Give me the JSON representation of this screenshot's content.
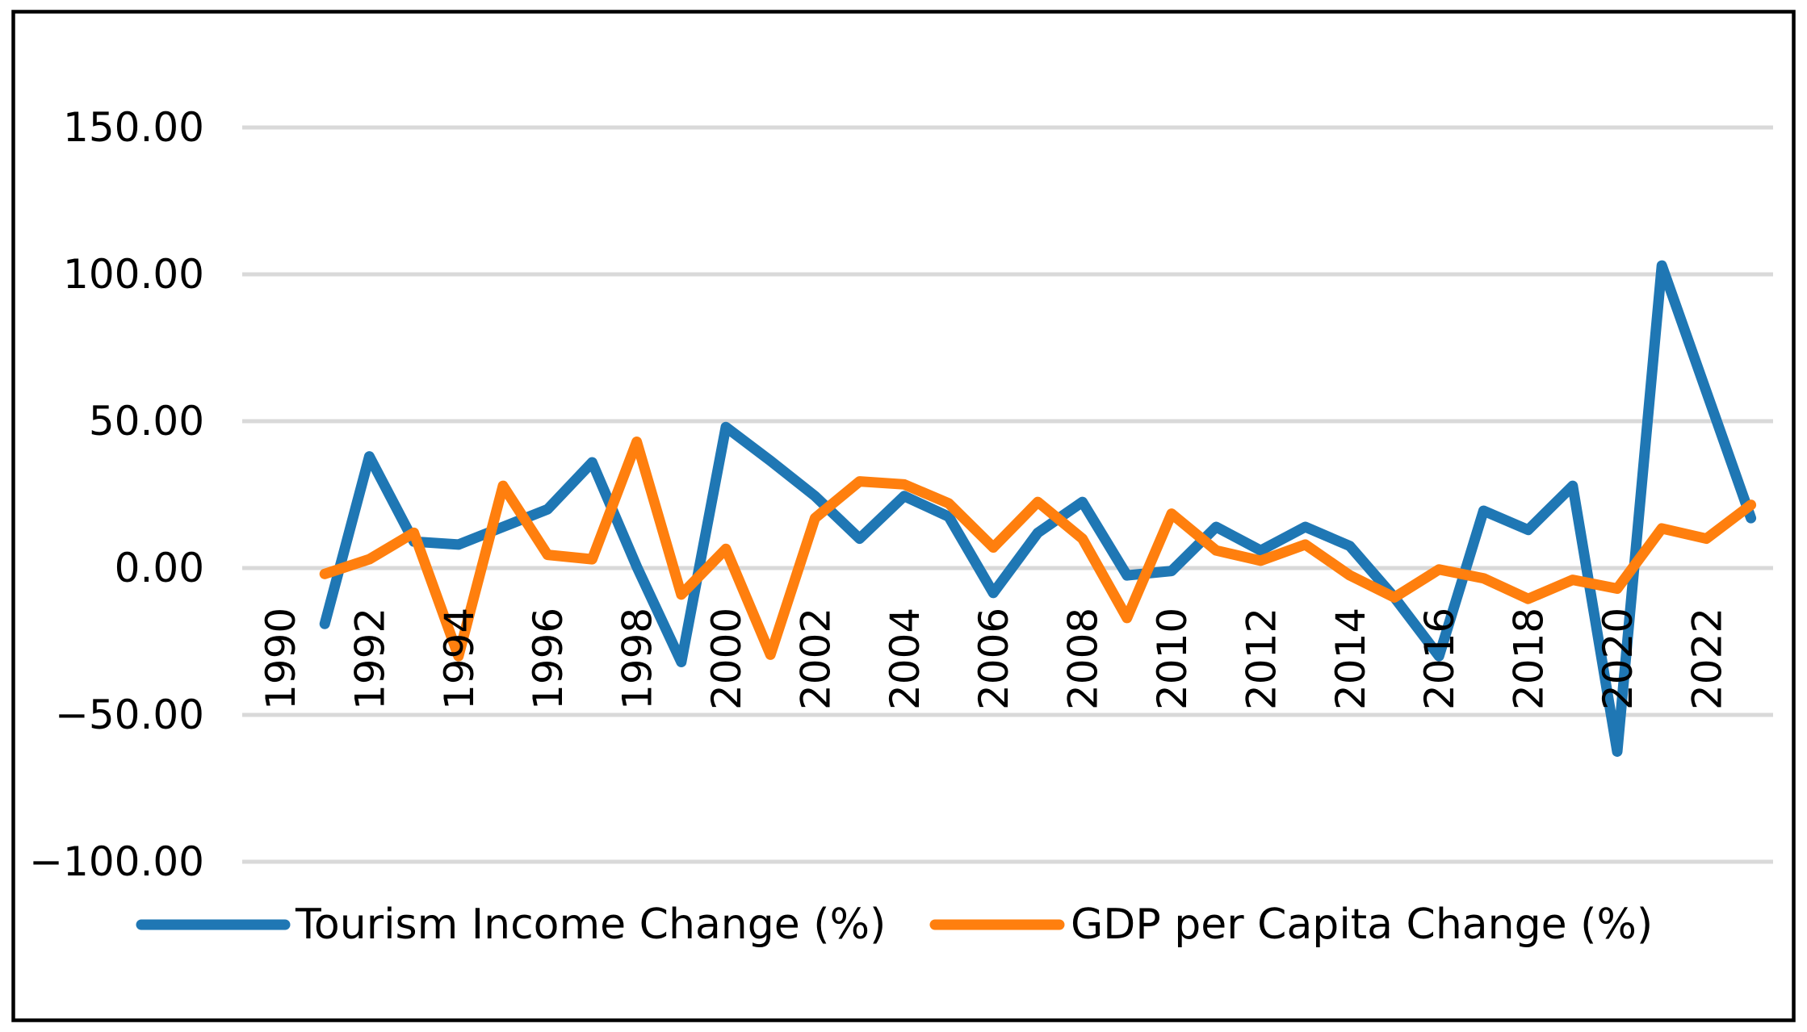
{
  "colors": {
    "tourism_line": "#1f77b4",
    "gdp_line": "#ff7f0e",
    "gridline": "#d9d9d9",
    "frame": "#000000",
    "background": "#ffffff",
    "tick_text": "#000000"
  },
  "legend": {
    "items": [
      {
        "label": "Tourism Income Change (%)",
        "series": "tourism"
      },
      {
        "label": "GDP per Capita Change (%)",
        "series": "gdp"
      }
    ]
  },
  "chart_data": {
    "type": "line",
    "title": "",
    "xlabel": "",
    "ylabel": "",
    "grid": "horizontal",
    "legend_position": "bottom",
    "ylim": [
      -100,
      150
    ],
    "x": [
      1991,
      1992,
      1993,
      1994,
      1995,
      1996,
      1997,
      1998,
      1999,
      2000,
      2001,
      2002,
      2003,
      2004,
      2005,
      2006,
      2007,
      2008,
      2009,
      2010,
      2011,
      2012,
      2013,
      2014,
      2015,
      2016,
      2017,
      2018,
      2019,
      2020,
      2021,
      2022,
      2023
    ],
    "series": [
      {
        "name": "Tourism Income Change (%)",
        "color_key": "tourism_line",
        "values": [
          -19,
          38,
          9,
          8,
          14,
          20,
          36,
          0.5,
          -32,
          48,
          36.5,
          24.5,
          10,
          24.5,
          17.5,
          -8.5,
          12,
          22.5,
          -2.5,
          -1,
          14,
          6,
          14,
          7.5,
          -10,
          -30,
          19.5,
          13,
          28,
          -62.5,
          103,
          60,
          17
        ]
      },
      {
        "name": "GDP per Capita Change (%)",
        "color_key": "gdp_line",
        "values": [
          -2,
          3,
          12,
          -30,
          28,
          4.5,
          3,
          43,
          -9,
          6.5,
          -29.5,
          17,
          29.5,
          28.5,
          22,
          7,
          22.5,
          10,
          -17,
          18.5,
          6,
          2.5,
          8,
          -2.5,
          -10,
          -0.5,
          -3.5,
          -10.5,
          -4,
          -7,
          13.5,
          10,
          21.5
        ]
      }
    ],
    "xticks": [
      "1990",
      "1992",
      "1994",
      "1996",
      "1998",
      "2000",
      "2002",
      "2004",
      "2006",
      "2008",
      "2010",
      "2012",
      "2014",
      "2016",
      "2018",
      "2020",
      "2022"
    ],
    "xtick_years": [
      1990,
      1992,
      1994,
      1996,
      1998,
      2000,
      2002,
      2004,
      2006,
      2008,
      2010,
      2012,
      2014,
      2016,
      2018,
      2020,
      2022
    ],
    "yticks": [
      {
        "value": 150,
        "label": "150.00"
      },
      {
        "value": 100,
        "label": "100.00"
      },
      {
        "value": 50,
        "label": "50.00"
      },
      {
        "value": 0,
        "label": "0.00"
      },
      {
        "value": -50,
        "label": "−50.00"
      },
      {
        "value": -100,
        "label": "−100.00"
      }
    ]
  }
}
